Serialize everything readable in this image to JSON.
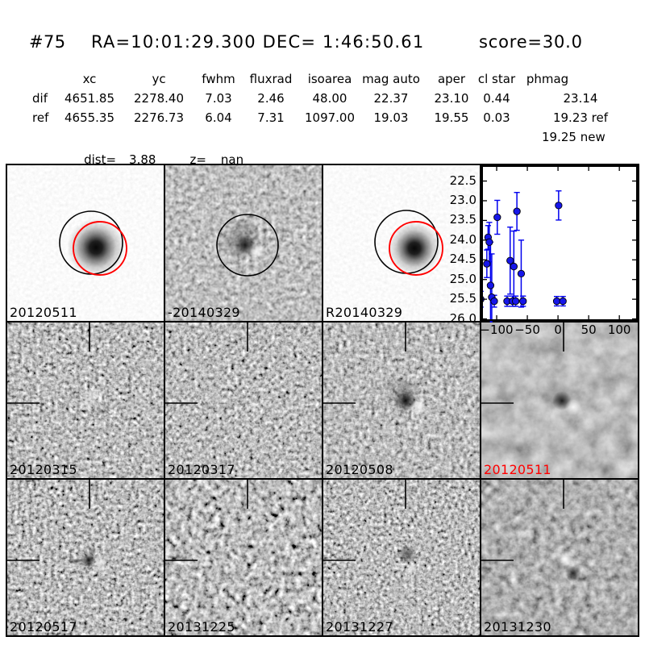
{
  "header": {
    "id": "#75",
    "coords": "RA=10:01:29.300 DEC= 1:46:50.61",
    "score": "score=30.0"
  },
  "photometry": {
    "headers": [
      "xc",
      "yc",
      "fwhm",
      "fluxrad",
      "isoarea",
      "mag auto",
      "aper",
      "cl star",
      "phmag"
    ],
    "dif": {
      "label": "dif",
      "values": [
        "4651.85",
        "2278.40",
        "7.03",
        "2.46",
        "48.00",
        "22.37",
        "23.10",
        "0.44",
        "23.14"
      ]
    },
    "ref": {
      "label": "ref",
      "values": [
        "4655.35",
        "2276.73",
        "6.04",
        "7.31",
        "1097.00",
        "19.03",
        "19.55",
        "0.03",
        "19.23 ref"
      ]
    },
    "phmag_new": "19.25 new",
    "dist_label": "dist=",
    "dist_value": "3.88",
    "z_label": "z=",
    "z_value": "nan"
  },
  "cutouts": {
    "new": {
      "label": "20120511"
    },
    "dif_main": {
      "label": "-20140329"
    },
    "ref": {
      "label": "R20140329"
    },
    "stamps": [
      {
        "label": "20120315",
        "color": "#000000"
      },
      {
        "label": "20120317",
        "color": "#000000"
      },
      {
        "label": "20120508",
        "color": "#000000"
      },
      {
        "label": "20120511",
        "color": "#ff0000"
      },
      {
        "label": "20120517",
        "color": "#000000"
      },
      {
        "label": "20131225",
        "color": "#000000"
      },
      {
        "label": "20131227",
        "color": "#000000"
      },
      {
        "label": "20131230",
        "color": "#000000"
      }
    ]
  },
  "chart_data": {
    "type": "scatter",
    "title": "",
    "xlabel": "",
    "ylabel": "",
    "xlim": [
      -125,
      130
    ],
    "ylim": [
      26.05,
      22.1
    ],
    "y_inverted": true,
    "xticks": [
      -100,
      -50,
      0,
      50,
      100
    ],
    "yticks": [
      22.5,
      23.0,
      23.5,
      24.0,
      24.5,
      25.0,
      25.5,
      26.0
    ],
    "grid": false,
    "legend": false,
    "marker_color": "#1616ea",
    "errorbar_color": "#0000ee",
    "series": [
      {
        "name": "light-curve",
        "points": [
          {
            "x": -126,
            "mag": 25.5,
            "err": 0.2
          },
          {
            "x": -116,
            "mag": 24.6,
            "err": 0.35
          },
          {
            "x": -114,
            "mag": 23.93,
            "err": 0.3
          },
          {
            "x": -112,
            "mag": 24.05,
            "err": 0.5
          },
          {
            "x": -110,
            "mag": 25.15,
            "err": 1.1
          },
          {
            "x": -108,
            "mag": 25.45,
            "err": 1.1
          },
          {
            "x": -104,
            "mag": 25.55,
            "err": 0.15
          },
          {
            "x": -99,
            "mag": 23.42,
            "err": 0.43
          },
          {
            "x": -83,
            "mag": 25.55,
            "err": 0.13
          },
          {
            "x": -78,
            "mag": 24.52,
            "err": 0.85
          },
          {
            "x": -74,
            "mag": 25.55,
            "err": 0.13
          },
          {
            "x": -72,
            "mag": 24.67,
            "err": 0.9
          },
          {
            "x": -69,
            "mag": 25.55,
            "err": 0.13
          },
          {
            "x": -67,
            "mag": 23.27,
            "err": 0.48
          },
          {
            "x": -60,
            "mag": 24.85,
            "err": 0.85
          },
          {
            "x": -57,
            "mag": 25.55,
            "err": 0.13
          },
          {
            "x": -2,
            "mag": 25.55,
            "err": 0.12
          },
          {
            "x": 1,
            "mag": 23.12,
            "err": 0.37
          },
          {
            "x": 8,
            "mag": 25.55,
            "err": 0.12
          }
        ]
      }
    ]
  },
  "colors": {
    "accent_red": "#ff0000",
    "marker_blue": "#1616ea"
  }
}
